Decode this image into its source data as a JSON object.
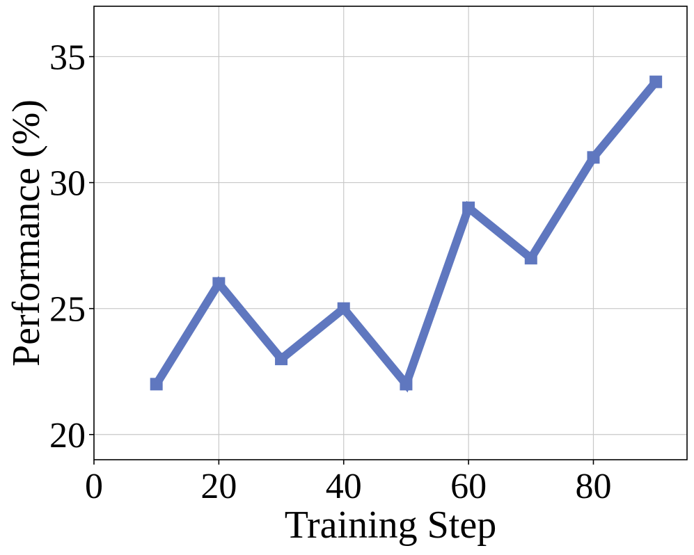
{
  "chart_data": {
    "type": "line",
    "title": "",
    "xlabel": "Training Step",
    "ylabel": "Performance (%)",
    "xlim": [
      0,
      95
    ],
    "ylim": [
      19,
      37
    ],
    "xticks": [
      0,
      20,
      40,
      60,
      80
    ],
    "yticks": [
      20,
      25,
      30,
      35
    ],
    "xtick_labels": [
      "0",
      "20",
      "40",
      "60",
      "80"
    ],
    "ytick_labels": [
      "20",
      "25",
      "30",
      "35"
    ],
    "grid": true,
    "legend": "none",
    "marker": "square",
    "colors": {
      "line": "#5f77bf",
      "grid": "#c8c8c8",
      "frame": "#000000"
    },
    "series": [
      {
        "x": [
          10,
          20,
          30,
          40,
          50,
          60,
          70,
          80,
          90
        ],
        "values": [
          22,
          26,
          23,
          25,
          22,
          29,
          27,
          31,
          34
        ]
      }
    ]
  }
}
